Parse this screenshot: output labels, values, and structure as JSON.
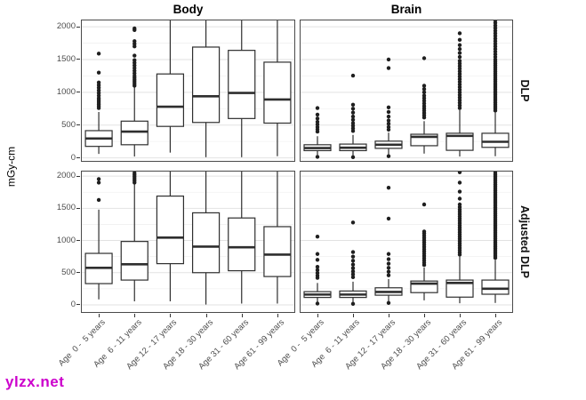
{
  "watermark": {
    "text": "ylzx.net",
    "color": "#cc00cc"
  },
  "y_axis": {
    "title": "mGy-cm",
    "ticks": [
      0,
      500,
      1000,
      1500,
      2000
    ],
    "minor_ticks": [
      250,
      750,
      1250,
      1750
    ]
  },
  "facets": {
    "columns": [
      "Body",
      "Brain"
    ],
    "rows": [
      "DLP",
      "Adjusted DLP"
    ]
  },
  "colors": {
    "box_stroke": "#2e2e2e",
    "box_fill": "#ffffff",
    "outlier": "#1f1f1f",
    "grid_major": "#e2e2e2",
    "grid_minor": "#f1f1f1",
    "panel_border": "#4a4a4a",
    "tick_text": "#4d4d4d"
  },
  "chart_data": {
    "type": "boxplot",
    "title": "",
    "ylabel": "mGy-cm",
    "legend": "none",
    "grid": "on",
    "categories": [
      "Age  0 -  5 years",
      "Age  6 - 11 years",
      "Age 12 - 17 years",
      "Age 18 - 30 years",
      "Age 31 - 60 years",
      "Age 61 - 99 years"
    ],
    "columns": [
      "Body",
      "Brain"
    ],
    "rows": [
      {
        "label": "DLP",
        "ylim": [
          -60,
          2110
        ]
      },
      {
        "label": "Adjusted DLP",
        "ylim": [
          -125,
          2085
        ]
      }
    ],
    "panels": [
      {
        "facet_col": "Body",
        "facet_row": "DLP",
        "boxes": [
          {
            "whisker_lo": 60,
            "q1": 175,
            "median": 295,
            "q3": 415,
            "whisker_hi": 700,
            "outliers": [
              760,
              790,
              820,
              850,
              880,
              910,
              950,
              990,
              1030,
              1070,
              1110,
              1150,
              1300,
              1590
            ]
          },
          {
            "whisker_lo": 20,
            "q1": 200,
            "median": 400,
            "q3": 560,
            "whisker_hi": 1075,
            "outliers": [
              1100,
              1130,
              1160,
              1190,
              1220,
              1250,
              1290,
              1330,
              1370,
              1410,
              1450,
              1490,
              1560,
              1700,
              1740,
              1780,
              1950,
              1975
            ]
          },
          {
            "whisker_lo": 80,
            "q1": 480,
            "median": 780,
            "q3": 1280,
            "whisker_hi": 2300,
            "outliers": []
          },
          {
            "whisker_lo": 10,
            "q1": 540,
            "median": 940,
            "q3": 1690,
            "whisker_hi": 2300,
            "outliers": []
          },
          {
            "whisker_lo": 10,
            "q1": 600,
            "median": 990,
            "q3": 1640,
            "whisker_hi": 2300,
            "outliers": []
          },
          {
            "whisker_lo": 25,
            "q1": 530,
            "median": 890,
            "q3": 1460,
            "whisker_hi": 2300,
            "outliers": []
          }
        ]
      },
      {
        "facet_col": "Brain",
        "facet_row": "DLP",
        "boxes": [
          {
            "whisker_lo": 45,
            "q1": 110,
            "median": 150,
            "q3": 200,
            "whisker_hi": 330,
            "outliers": [
              15,
              400,
              435,
              470,
              510,
              550,
              600,
              660,
              760
            ]
          },
          {
            "whisker_lo": 35,
            "q1": 110,
            "median": 155,
            "q3": 210,
            "whisker_hi": 350,
            "outliers": [
              10,
              410,
              450,
              490,
              530,
              580,
              630,
              690,
              750,
              810,
              1255
            ]
          },
          {
            "whisker_lo": 55,
            "q1": 145,
            "median": 200,
            "q3": 255,
            "whisker_hi": 385,
            "outliers": [
              25,
              430,
              470,
              520,
              570,
              630,
              700,
              770,
              1370,
              1500
            ]
          },
          {
            "whisker_lo": 65,
            "q1": 185,
            "median": 320,
            "q3": 360,
            "whisker_hi": 560,
            "outliers": [
              615,
              650,
              685,
              720,
              755,
              790,
              830,
              870,
              910,
              950,
              1000,
              1050,
              1100,
              1520
            ]
          },
          {
            "whisker_lo": 20,
            "q1": 115,
            "median": 335,
            "q3": 375,
            "whisker_hi": 730,
            "outliers": [
              760,
              800,
              840,
              880,
              920,
              960,
              1000,
              1040,
              1080,
              1120,
              1160,
              1200,
              1240,
              1280,
              1320,
              1360,
              1400,
              1440,
              1480,
              1540,
              1600,
              1660,
              1720,
              1800,
              1900
            ]
          },
          {
            "whisker_lo": 25,
            "q1": 160,
            "median": 245,
            "q3": 375,
            "whisker_hi": 690,
            "outliers": [
              720,
              750,
              780,
              810,
              840,
              870,
              900,
              930,
              960,
              990,
              1020,
              1050,
              1080,
              1110,
              1140,
              1170,
              1200,
              1230,
              1260,
              1290,
              1320,
              1350,
              1380,
              1410,
              1440,
              1470,
              1500,
              1540,
              1580,
              1620,
              1660,
              1700,
              1740,
              1780,
              1820,
              1860,
              1900,
              1940,
              1980,
              2020,
              2060,
              2100
            ]
          }
        ]
      },
      {
        "facet_col": "Body",
        "facet_row": "Adjusted DLP",
        "boxes": [
          {
            "whisker_lo": 85,
            "q1": 330,
            "median": 575,
            "q3": 800,
            "whisker_hi": 1480,
            "outliers": [
              1630,
              1900,
              1955
            ]
          },
          {
            "whisker_lo": 55,
            "q1": 385,
            "median": 630,
            "q3": 985,
            "whisker_hi": 1880,
            "outliers": [
              1900,
              1930,
              1960,
              1990,
              2020,
              2050
            ]
          },
          {
            "whisker_lo": 55,
            "q1": 640,
            "median": 1045,
            "q3": 1690,
            "whisker_hi": 2300,
            "outliers": []
          },
          {
            "whisker_lo": 5,
            "q1": 500,
            "median": 905,
            "q3": 1430,
            "whisker_hi": 2300,
            "outliers": []
          },
          {
            "whisker_lo": 20,
            "q1": 530,
            "median": 895,
            "q3": 1350,
            "whisker_hi": 2300,
            "outliers": []
          },
          {
            "whisker_lo": 20,
            "q1": 440,
            "median": 780,
            "q3": 1215,
            "whisker_hi": 2300,
            "outliers": []
          }
        ]
      },
      {
        "facet_col": "Brain",
        "facet_row": "Adjusted DLP",
        "boxes": [
          {
            "whisker_lo": 45,
            "q1": 115,
            "median": 160,
            "q3": 205,
            "whisker_hi": 340,
            "outliers": [
              20,
              420,
              455,
              495,
              540,
              590,
              700,
              790,
              1060
            ]
          },
          {
            "whisker_lo": 40,
            "q1": 115,
            "median": 160,
            "q3": 215,
            "whisker_hi": 360,
            "outliers": [
              15,
              430,
              475,
              520,
              570,
              625,
              685,
              750,
              820,
              1280
            ]
          },
          {
            "whisker_lo": 55,
            "q1": 150,
            "median": 200,
            "q3": 265,
            "whisker_hi": 400,
            "outliers": [
              30,
              460,
              515,
              575,
              640,
              710,
              790,
              1340,
              1820
            ]
          },
          {
            "whisker_lo": 70,
            "q1": 190,
            "median": 330,
            "q3": 370,
            "whisker_hi": 580,
            "outliers": [
              620,
              655,
              690,
              725,
              760,
              795,
              830,
              865,
              900,
              935,
              970,
              1005,
              1040,
              1075,
              1110,
              1140,
              1560
            ]
          },
          {
            "whisker_lo": 25,
            "q1": 120,
            "median": 340,
            "q3": 385,
            "whisker_hi": 750,
            "outliers": [
              780,
              815,
              850,
              885,
              920,
              955,
              990,
              1025,
              1060,
              1095,
              1130,
              1165,
              1200,
              1235,
              1270,
              1305,
              1340,
              1375,
              1410,
              1445,
              1480,
              1520,
              1560,
              1650,
              1760,
              1900,
              2060
            ]
          },
          {
            "whisker_lo": 30,
            "q1": 165,
            "median": 250,
            "q3": 385,
            "whisker_hi": 700,
            "outliers": [
              730,
              760,
              790,
              820,
              850,
              880,
              910,
              940,
              970,
              1000,
              1030,
              1060,
              1090,
              1120,
              1150,
              1180,
              1210,
              1240,
              1270,
              1300,
              1330,
              1360,
              1390,
              1420,
              1450,
              1480,
              1510,
              1540,
              1570,
              1600,
              1630,
              1660,
              1690,
              1720,
              1750,
              1780,
              1810,
              1840,
              1870,
              1900,
              1930,
              1960,
              1990,
              2020,
              2050,
              2080,
              2110
            ]
          }
        ]
      }
    ]
  }
}
